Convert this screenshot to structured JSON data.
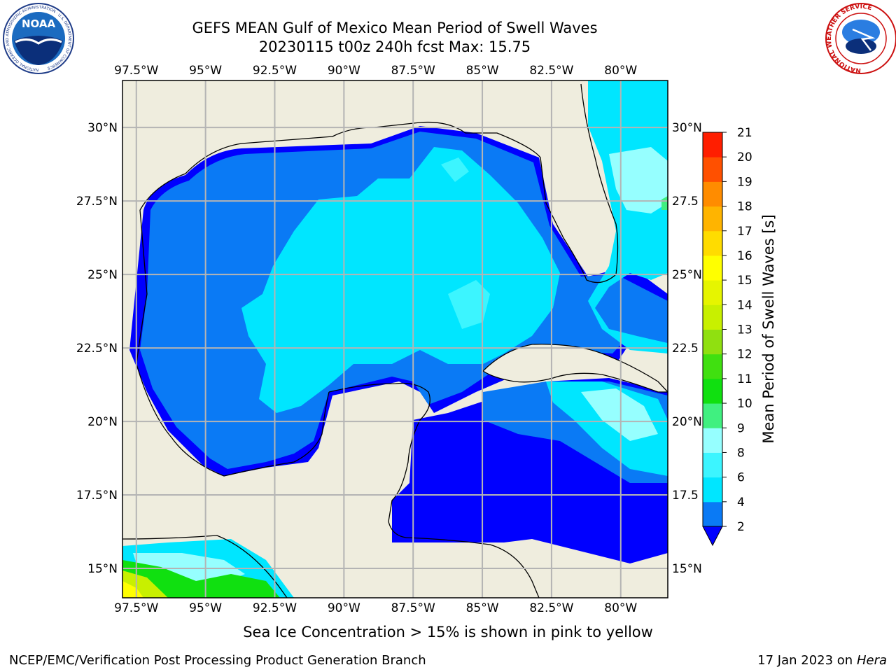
{
  "header": {
    "title_line1": "GEFS MEAN Gulf of Mexico Mean Period of Swell Waves",
    "title_line2": "20230115 t00z 240h fcst   Max: 15.75"
  },
  "map": {
    "lon_labels": [
      "97.5°W",
      "95°W",
      "92.5°W",
      "90°W",
      "87.5°W",
      "85°W",
      "82.5°W",
      "80°W"
    ],
    "lon_values": [
      -97.5,
      -95,
      -92.5,
      -90,
      -87.5,
      -85,
      -82.5,
      -80
    ],
    "lat_labels": [
      "30°N",
      "27.5°N",
      "25°N",
      "22.5°N",
      "20°N",
      "17.5°N",
      "15°N"
    ],
    "lat_values": [
      30,
      27.5,
      25,
      22.5,
      20,
      17.5,
      15
    ],
    "right_lat_labels": [
      "30°N",
      "27.5",
      "25°N",
      "22.5",
      "20°N",
      "17.5",
      "15°N"
    ],
    "extent": {
      "lon_min": -98,
      "lon_max": -78.3,
      "lat_min": 14.0,
      "lat_max": 31.6
    },
    "colors": {
      "land": "#efedde",
      "grid": "#b4b4b4",
      "coast": "#000000"
    }
  },
  "colorbar": {
    "label": "Mean Period of Swell Waves [s]",
    "ticks": [
      "2",
      "4",
      "6",
      "8",
      "9",
      "10",
      "11",
      "12",
      "13",
      "14",
      "15",
      "16",
      "17",
      "18",
      "19",
      "20",
      "21"
    ],
    "colors": [
      "#0a7af5",
      "#00e6ff",
      "#3cf5ff",
      "#96ffff",
      "#40f080",
      "#10e010",
      "#40e010",
      "#90e010",
      "#c8f000",
      "#e6f500",
      "#ffff00",
      "#ffdc00",
      "#ffb400",
      "#ff8c00",
      "#ff5000",
      "#ff1e00"
    ],
    "under_color": "#0000ff"
  },
  "footer": {
    "ice_note": "Sea Ice Concentration > 15% is shown in pink to yellow",
    "credit_left": "NCEP/EMC/Verification Post Processing Product Generation Branch",
    "credit_date": "17 Jan 2023 on ",
    "credit_host": "Hera"
  },
  "logos": {
    "noaa_text": "NOAA",
    "noaa_ring_text": "NATIONAL OCEANIC AND ATMOSPHERIC ADMINISTRATION · U.S. DEPARTMENT OF COMMERCE",
    "nws_ring_text": "NATIONAL WEATHER SERVICE"
  }
}
